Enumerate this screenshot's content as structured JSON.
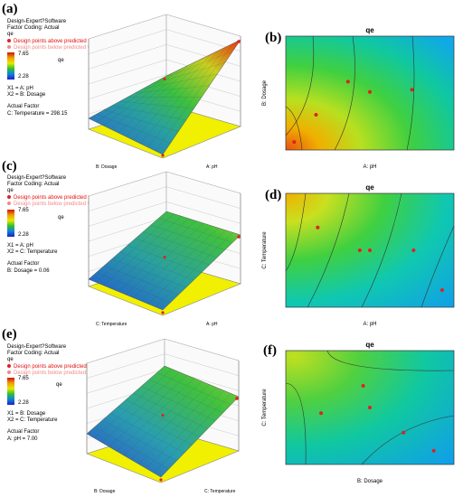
{
  "panels": [
    {
      "label": "(a)",
      "software": "Design-Expert?Software",
      "coding": "Factor Coding: Actual",
      "response": "qe",
      "pt_above": "Design points above predicted value",
      "pt_below": "Design points below predicted value",
      "legend_max": "7.65",
      "legend_min": "2.28",
      "x1": "X1 = A: pH",
      "x2": "X2 = B: Dosage",
      "actual_factor": "Actual Factor",
      "fixed": "C: Temperature = 298.15",
      "zlabel": "qe",
      "axis_left": "B: Dosage",
      "axis_right": "A: pH"
    },
    {
      "label": "(b)",
      "title": "qe",
      "xlabel": "A: pH",
      "ylabel": "B: Dosage"
    },
    {
      "label": "(c)",
      "software": "Design-Expert?Software",
      "coding": "Factor Coding: Actual",
      "response": "qe",
      "pt_above": "Design points above predicted value",
      "pt_below": "Design points below predicted value",
      "legend_max": "7.65",
      "legend_min": "2.28",
      "x1": "X1 = A: pH",
      "x2": "X2 = C: Temperature",
      "actual_factor": "Actual Factor",
      "fixed": "B: Dosage = 0.06",
      "zlabel": "qe",
      "axis_left": "C: Temperature",
      "axis_right": "A: pH"
    },
    {
      "label": "(d)",
      "title": "qe",
      "xlabel": "A: pH",
      "ylabel": "C: Temperature"
    },
    {
      "label": "(e)",
      "software": "Design-Expert?Software",
      "coding": "Factor Coding: Actual",
      "response": "qe",
      "pt_above": "Design points above predicted value",
      "pt_below": "Design points below predicted value",
      "legend_max": "7.65",
      "legend_min": "2.28",
      "x1": "X1 = B: Dosage",
      "x2": "X2 = C: Temperature",
      "actual_factor": "Actual Factor",
      "fixed": "A: pH = 7.00",
      "zlabel": "qe",
      "axis_left": "B: Dosage",
      "axis_right": "C: Temperature"
    },
    {
      "label": "(f)",
      "title": "qe",
      "xlabel": "B: Dosage",
      "ylabel": "C: Temperature"
    }
  ],
  "colors": {
    "high": "#d01010",
    "mid": "#30c030",
    "low": "#1080e0",
    "floor": "#f0f000",
    "point": "#e02020"
  },
  "chart_data": [
    {
      "type": "surface",
      "zmin": 2.28,
      "zmax": 7.65
    },
    {
      "type": "contour"
    },
    {
      "type": "surface",
      "zmin": 2.28,
      "zmax": 7.65
    },
    {
      "type": "contour"
    },
    {
      "type": "surface",
      "zmin": 2.28,
      "zmax": 7.65
    },
    {
      "type": "contour"
    }
  ]
}
